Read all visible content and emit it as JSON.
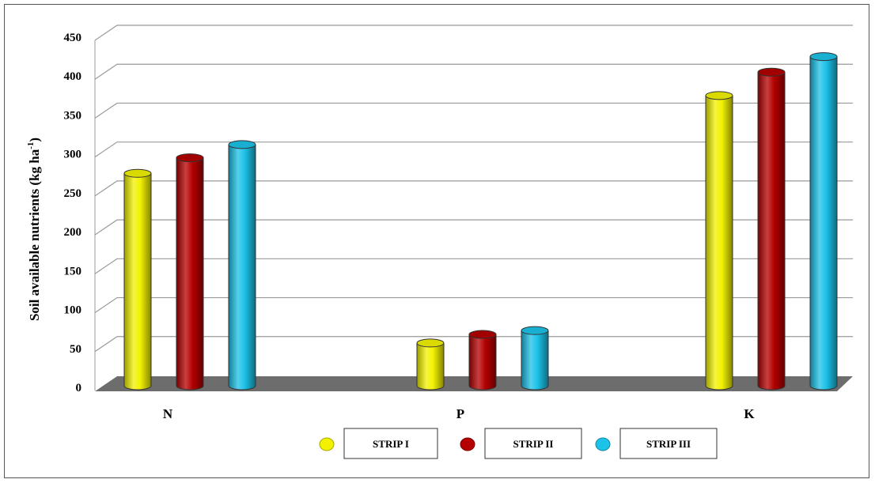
{
  "chart_data": {
    "type": "bar",
    "categories": [
      "N",
      "P",
      "K"
    ],
    "series": [
      {
        "name": "STRIP I",
        "values": [
          275,
          57,
          375
        ],
        "color": "#f2f200"
      },
      {
        "name": "STRIP II",
        "values": [
          295,
          68,
          405
        ],
        "color": "#b40000"
      },
      {
        "name": "STRIP III",
        "values": [
          312,
          73,
          425
        ],
        "color": "#1cc2e8"
      }
    ],
    "ylabel": "Soil available nutrients (kg ha",
    "ylabel_sup": "-1",
    "ylabel_end": ")",
    "ylim": [
      0,
      450
    ],
    "yticks": [
      0,
      50,
      100,
      150,
      200,
      250,
      300,
      350,
      400,
      450
    ],
    "grid": true,
    "legend_position": "bottom-center",
    "style": "3d-cylinder"
  }
}
